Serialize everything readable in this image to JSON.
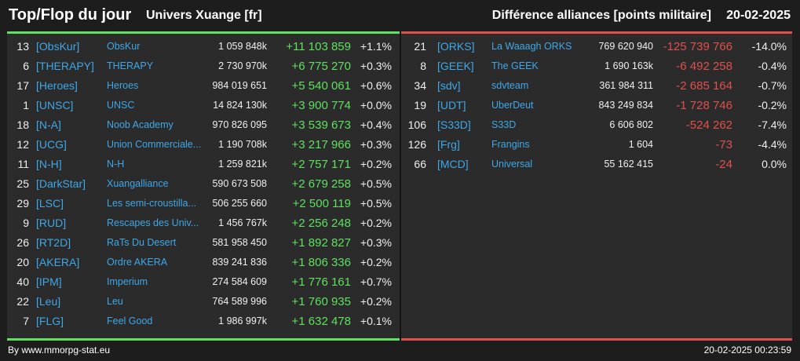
{
  "header": {
    "title": "Top/Flop du jour",
    "univers": "Univers Xuange [fr]",
    "metric": "Différence alliances [points militaire]",
    "date": "20-02-2025"
  },
  "colors": {
    "gain": "#5fe05f",
    "loss": "#e0504c",
    "tag": "#3ea8e8"
  },
  "top": [
    {
      "rank": "13",
      "tag": "[ObsKur]",
      "name": "ObsKur",
      "points": "1 059 848k",
      "diff": "+11 103 859",
      "pct": "+1.1%"
    },
    {
      "rank": "6",
      "tag": "[THERAPY]",
      "name": "THERAPY",
      "points": "2 730 970k",
      "diff": "+6 775 270",
      "pct": "+0.3%"
    },
    {
      "rank": "17",
      "tag": "[Heroes]",
      "name": "Heroes",
      "points": "984 019 651",
      "diff": "+5 540 061",
      "pct": "+0.6%"
    },
    {
      "rank": "1",
      "tag": "[UNSC]",
      "name": "UNSC",
      "points": "14 824 130k",
      "diff": "+3 900 774",
      "pct": "+0.0%"
    },
    {
      "rank": "18",
      "tag": "[N-A]",
      "name": "Noob Academy",
      "points": "970 826 095",
      "diff": "+3 539 673",
      "pct": "+0.4%"
    },
    {
      "rank": "12",
      "tag": "[UCG]",
      "name": "Union Commerciale...",
      "points": "1 190 708k",
      "diff": "+3 217 966",
      "pct": "+0.3%"
    },
    {
      "rank": "11",
      "tag": "[N-H]",
      "name": "N-H",
      "points": "1 259 821k",
      "diff": "+2 757 171",
      "pct": "+0.2%"
    },
    {
      "rank": "25",
      "tag": "[DarkStar]",
      "name": "Xuangalliance",
      "points": "590 673 508",
      "diff": "+2 679 258",
      "pct": "+0.5%"
    },
    {
      "rank": "29",
      "tag": "[LSC]",
      "name": "Les semi-croustilla...",
      "points": "506 255 660",
      "diff": "+2 500 119",
      "pct": "+0.5%"
    },
    {
      "rank": "9",
      "tag": "[RUD]",
      "name": "Rescapes des Univ...",
      "points": "1 456 767k",
      "diff": "+2 256 248",
      "pct": "+0.2%"
    },
    {
      "rank": "26",
      "tag": "[RT2D]",
      "name": "RaTs Du Desert",
      "points": "581 958 450",
      "diff": "+1 892 827",
      "pct": "+0.3%"
    },
    {
      "rank": "20",
      "tag": "[AKERA]",
      "name": "Ordre AKERA",
      "points": "839 241 836",
      "diff": "+1 806 336",
      "pct": "+0.2%"
    },
    {
      "rank": "40",
      "tag": "[IPM]",
      "name": "Imperium",
      "points": "274 584 609",
      "diff": "+1 776 161",
      "pct": "+0.7%"
    },
    {
      "rank": "22",
      "tag": "[Leu]",
      "name": "Leu",
      "points": "764 589 996",
      "diff": "+1 760 935",
      "pct": "+0.2%"
    },
    {
      "rank": "7",
      "tag": "[FLG]",
      "name": "Feel Good",
      "points": "1 986 997k",
      "diff": "+1 632 478",
      "pct": "+0.1%"
    }
  ],
  "flop": [
    {
      "rank": "21",
      "tag": "[ORKS]",
      "name": "La Waaagh ORKS",
      "points": "769 620 940",
      "diff": "-125 739 766",
      "pct": "-14.0%"
    },
    {
      "rank": "8",
      "tag": "[GEEK]",
      "name": "The GEEK",
      "points": "1 690 163k",
      "diff": "-6 492 258",
      "pct": "-0.4%"
    },
    {
      "rank": "34",
      "tag": "[sdv]",
      "name": "sdvteam",
      "points": "361 984 311",
      "diff": "-2 685 164",
      "pct": "-0.7%"
    },
    {
      "rank": "19",
      "tag": "[UDT]",
      "name": "UberDeut",
      "points": "843 249 834",
      "diff": "-1 728 746",
      "pct": "-0.2%"
    },
    {
      "rank": "106",
      "tag": "[S33D]",
      "name": "S33D",
      "points": "6 606 802",
      "diff": "-524 262",
      "pct": "-7.4%"
    },
    {
      "rank": "126",
      "tag": "[Frg]",
      "name": "Frangins",
      "points": "1 604",
      "diff": "-73",
      "pct": "-4.4%"
    },
    {
      "rank": "66",
      "tag": "[MCD]",
      "name": "Universal",
      "points": "55 162 415",
      "diff": "-24",
      "pct": "0.0%"
    }
  ],
  "footer": {
    "source": "By www.mmorpg-stat.eu",
    "timestamp": "20-02-2025 00:23:59"
  }
}
